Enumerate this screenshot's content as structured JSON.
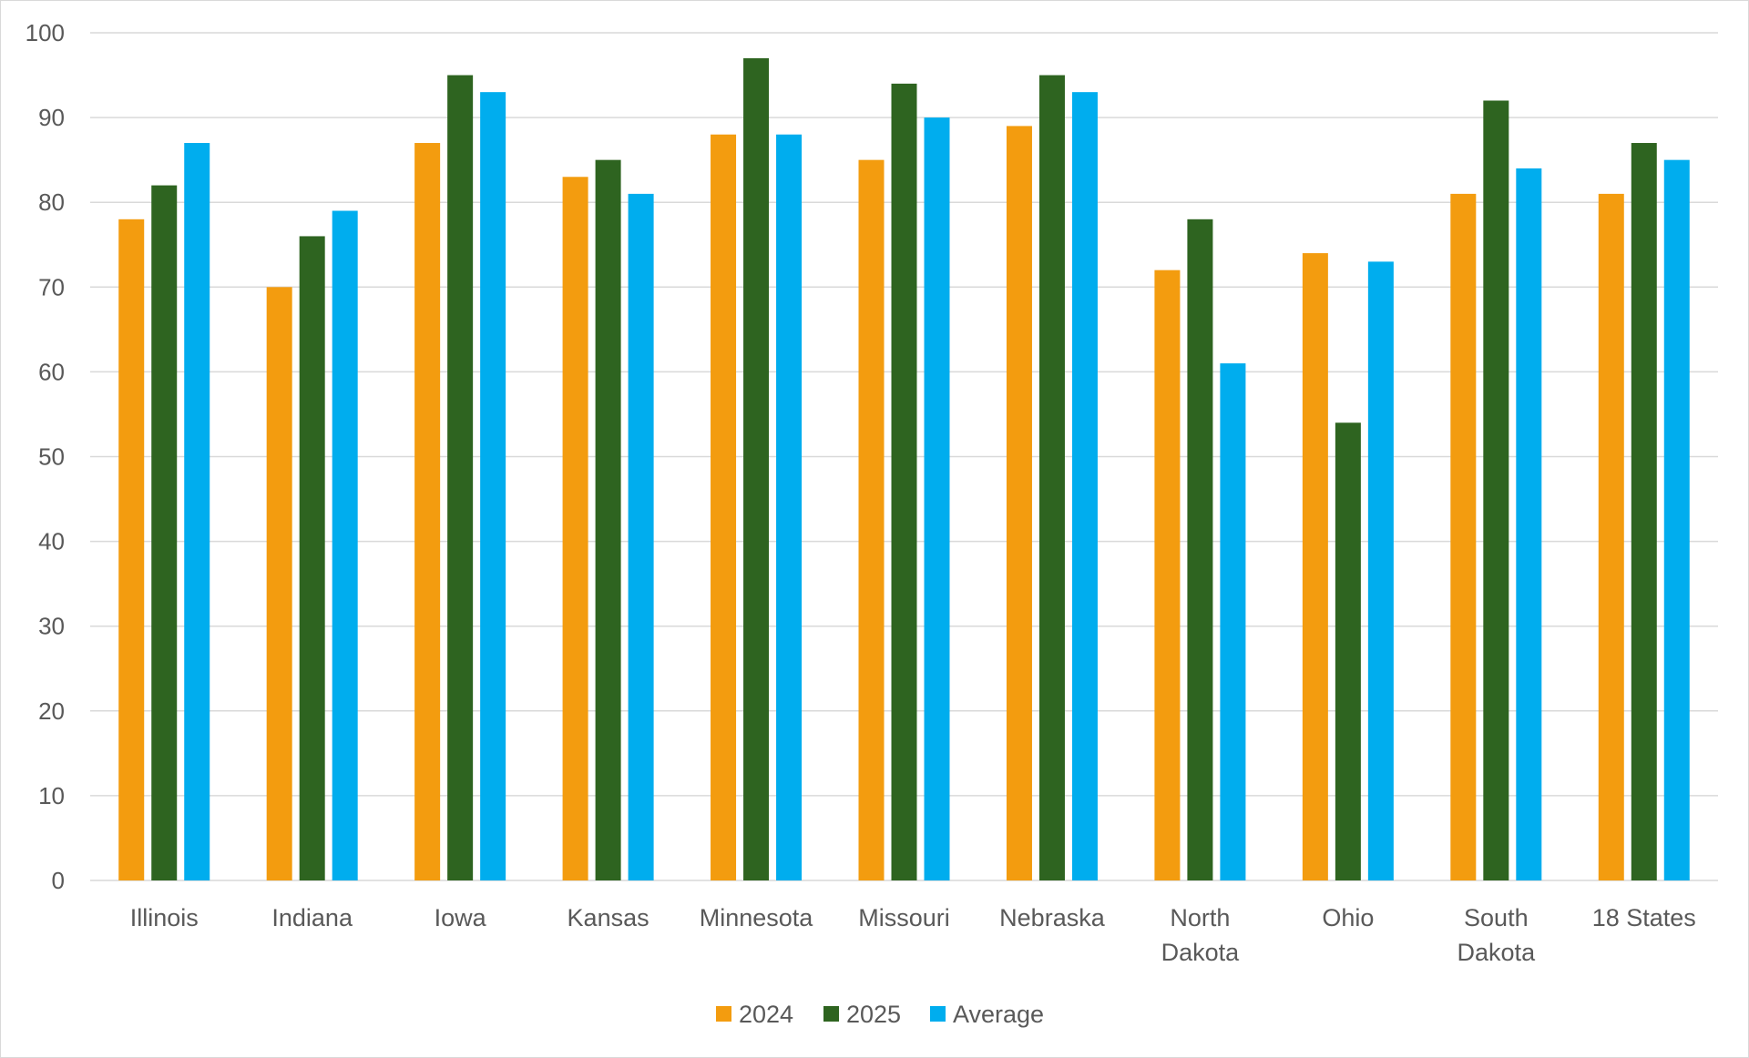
{
  "chart_data": {
    "type": "bar",
    "title": "",
    "xlabel": "",
    "ylabel": "",
    "ylim": [
      0,
      100
    ],
    "yticks": [
      0,
      10,
      20,
      30,
      40,
      50,
      60,
      70,
      80,
      90,
      100
    ],
    "grid": true,
    "legend_position": "bottom",
    "categories": [
      [
        "Illinois"
      ],
      [
        "Indiana"
      ],
      [
        "Iowa"
      ],
      [
        "Kansas"
      ],
      [
        "Minnesota"
      ],
      [
        "Missouri"
      ],
      [
        "Nebraska"
      ],
      [
        "North",
        "Dakota"
      ],
      [
        "Ohio"
      ],
      [
        "South",
        "Dakota"
      ],
      [
        "18 States"
      ]
    ],
    "series": [
      {
        "name": "2024",
        "color": "#F39C0F",
        "values": [
          78,
          70,
          87,
          83,
          88,
          85,
          89,
          72,
          74,
          81,
          81
        ]
      },
      {
        "name": "2025",
        "color": "#2E6420",
        "values": [
          82,
          76,
          95,
          85,
          97,
          94,
          95,
          78,
          54,
          92,
          87
        ]
      },
      {
        "name": "Average",
        "color": "#00ADEE",
        "values": [
          87,
          79,
          93,
          81,
          88,
          90,
          93,
          61,
          73,
          84,
          85
        ]
      }
    ],
    "gridline_color": "#d9d9d9"
  }
}
